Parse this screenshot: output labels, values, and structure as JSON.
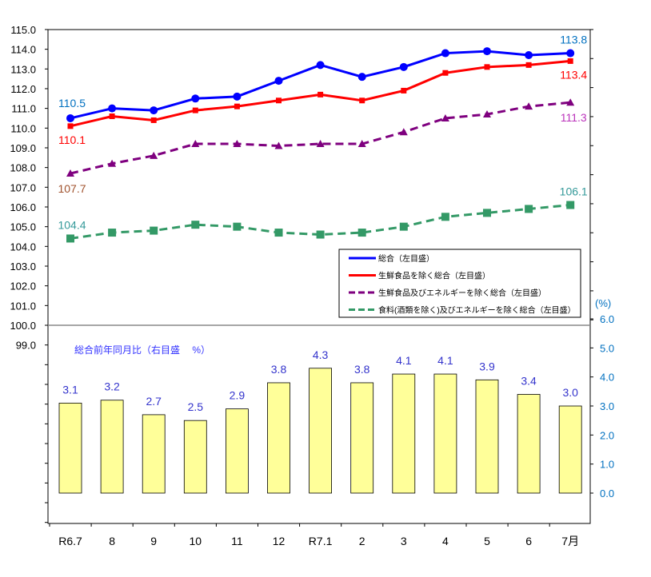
{
  "chart_data": {
    "type": "line+bar",
    "categories": [
      "R6.7",
      "8",
      "9",
      "10",
      "11",
      "12",
      "R7.1",
      "2",
      "3",
      "4",
      "5",
      "6",
      "7月"
    ],
    "left_axis": {
      "range": [
        99,
        115
      ],
      "ticks": [
        "115.0",
        "114.0",
        "113.0",
        "112.0",
        "111.0",
        "110.0",
        "109.0",
        "108.0",
        "107.0",
        "106.0",
        "105.0",
        "104.0",
        "103.0",
        "102.0",
        "101.0",
        "100.0",
        "99.0"
      ]
    },
    "right_axis": {
      "unit_label": "(%)",
      "range": [
        0,
        6
      ],
      "ticks": [
        "6.0",
        "5.0",
        "4.0",
        "3.0",
        "2.0",
        "1.0",
        "0.0"
      ]
    },
    "series": [
      {
        "name": "総合（左目盛）",
        "color": "#0000ff",
        "marker": "circle",
        "dash": "solid",
        "values": [
          110.5,
          111.0,
          110.9,
          111.5,
          111.6,
          112.4,
          113.2,
          112.6,
          113.1,
          113.8,
          113.9,
          113.7,
          113.8
        ],
        "labels": {
          "first": "110.5",
          "last": "113.8"
        }
      },
      {
        "name": "生鮮食品を除く総合（左目盛）",
        "color": "#ff0000",
        "marker": "square",
        "dash": "solid",
        "values": [
          110.1,
          110.6,
          110.4,
          110.9,
          111.1,
          111.4,
          111.7,
          111.4,
          111.9,
          112.8,
          113.1,
          113.2,
          113.4
        ],
        "labels": {
          "first": "110.1",
          "last": "113.4"
        }
      },
      {
        "name": "生鮮食品及びエネルギーを除く総合（左目盛）",
        "color": "#7f007f",
        "marker": "triangle",
        "dash": "dashed",
        "values": [
          107.7,
          108.2,
          108.6,
          109.2,
          109.2,
          109.1,
          109.2,
          109.2,
          109.8,
          110.5,
          110.7,
          111.1,
          111.3
        ],
        "labels": {
          "first": "107.7",
          "last": "111.3"
        }
      },
      {
        "name": "食料(酒類を除く)及びエネルギーを除く総合（左目盛）",
        "color": "#339966",
        "marker": "square",
        "dash": "dashed",
        "values": [
          104.4,
          104.7,
          104.8,
          105.1,
          105.0,
          104.7,
          104.6,
          104.7,
          105.0,
          105.5,
          105.7,
          105.9,
          106.1
        ],
        "labels": {
          "first": "104.4",
          "last": "106.1"
        }
      }
    ],
    "bars": {
      "name": "総合前年同月比（右目盛　 %）",
      "color": "#ffff99",
      "values": [
        3.1,
        3.2,
        2.7,
        2.5,
        2.9,
        3.8,
        4.3,
        3.8,
        4.1,
        4.1,
        3.9,
        3.4,
        3.0
      ],
      "labels": [
        "3.1",
        "3.2",
        "2.7",
        "2.5",
        "2.9",
        "3.8",
        "4.3",
        "3.8",
        "4.1",
        "4.1",
        "3.9",
        "3.4",
        "3.0"
      ]
    },
    "legend_placement": "center-right"
  }
}
